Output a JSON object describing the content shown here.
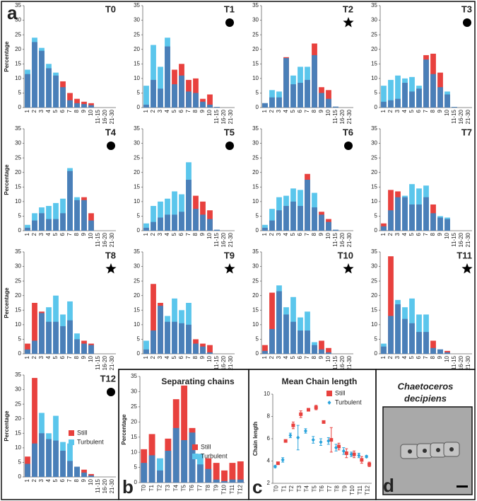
{
  "chart_data": [
    {
      "type": "bar",
      "title": "T0",
      "panel": "a",
      "ylabel": "Percentage",
      "categories": [
        "1",
        "2",
        "3",
        "4",
        "5",
        "6",
        "7",
        "8",
        "9",
        "10",
        "11-15",
        "16-20",
        "21-30"
      ],
      "series": [
        {
          "color": "#e8413e",
          "values": [
            11.5,
            22.5,
            19.5,
            13.5,
            11,
            9,
            5,
            3,
            2,
            1.5,
            0,
            0,
            0
          ]
        },
        {
          "color": "#5bc6ec",
          "values": [
            13,
            24,
            20.5,
            15,
            12,
            7,
            2.5,
            1.5,
            1.2,
            0.8,
            0,
            0,
            0
          ]
        }
      ],
      "overlap_color": "#4a7fb8",
      "ylim": [
        0,
        35
      ],
      "yticks": [
        0,
        5,
        10,
        15,
        20,
        25,
        30,
        35
      ]
    },
    {
      "type": "bar",
      "title": "T1",
      "marker": "circle",
      "categories": [
        "1",
        "2",
        "3",
        "4",
        "5",
        "6",
        "7",
        "8",
        "9",
        "10",
        "11-15",
        "16-20",
        "21-30"
      ],
      "series": [
        {
          "color": "#e8413e",
          "values": [
            1,
            9.5,
            6.5,
            21,
            13,
            15,
            9.5,
            10,
            3,
            4.5,
            0.2,
            0,
            0
          ]
        },
        {
          "color": "#5bc6ec",
          "values": [
            7.5,
            21.5,
            14,
            24,
            8,
            11,
            5.5,
            5,
            2,
            1,
            0.2,
            0,
            0
          ]
        }
      ],
      "overlap_color": "#4a7fb8",
      "ylim": [
        0,
        35
      ],
      "yticks": [
        0,
        5,
        10,
        15,
        20,
        25,
        30,
        35
      ]
    },
    {
      "type": "bar",
      "title": "T2",
      "marker": "star",
      "categories": [
        "1",
        "2",
        "3",
        "4",
        "5",
        "6",
        "7",
        "8",
        "9",
        "10",
        "11-15",
        "16-20",
        "21-30"
      ],
      "series": [
        {
          "color": "#e8413e",
          "values": [
            1.5,
            3.5,
            3.5,
            17.3,
            8,
            8.5,
            9.5,
            22,
            7,
            6,
            0.3,
            0,
            0
          ]
        },
        {
          "color": "#5bc6ec",
          "values": [
            1.5,
            6,
            5.5,
            17,
            11,
            14,
            14,
            18,
            5,
            3,
            0.3,
            0,
            0
          ]
        }
      ],
      "overlap_color": "#4a7fb8",
      "ylim": [
        0,
        35
      ],
      "yticks": [
        0,
        5,
        10,
        15,
        20,
        25,
        30,
        35
      ]
    },
    {
      "type": "bar",
      "title": "T3",
      "marker": "circle",
      "categories": [
        "1",
        "2",
        "3",
        "4",
        "5",
        "6",
        "7",
        "8",
        "9",
        "10",
        "11-15",
        "16-20",
        "21-30"
      ],
      "series": [
        {
          "color": "#e8413e",
          "values": [
            2,
            2.5,
            3,
            8.5,
            5.5,
            6.5,
            18,
            18.5,
            12,
            4.5,
            0.2,
            0,
            0
          ]
        },
        {
          "color": "#5bc6ec",
          "values": [
            7.5,
            9.5,
            11,
            10,
            10.5,
            7.5,
            16.5,
            11.5,
            7,
            5.5,
            0.2,
            0,
            0
          ]
        }
      ],
      "overlap_color": "#4a7fb8",
      "ylim": [
        0,
        35
      ],
      "yticks": [
        0,
        5,
        10,
        15,
        20,
        25,
        30,
        35
      ]
    },
    {
      "type": "bar",
      "title": "T4",
      "marker": "circle",
      "ylabel": "Percentage",
      "categories": [
        "1",
        "2",
        "3",
        "4",
        "5",
        "6",
        "7",
        "8",
        "9",
        "10",
        "11-15",
        "16-20",
        "21-30"
      ],
      "series": [
        {
          "color": "#e8413e",
          "values": [
            1,
            3.5,
            6,
            4,
            4,
            6,
            20.5,
            10.5,
            11.5,
            6,
            0,
            0,
            0
          ]
        },
        {
          "color": "#5bc6ec",
          "values": [
            2,
            6,
            8,
            8.5,
            9.5,
            11,
            21.5,
            11.5,
            10.5,
            3.5,
            0,
            0,
            0
          ]
        }
      ],
      "overlap_color": "#4a7fb8",
      "ylim": [
        0,
        35
      ],
      "yticks": [
        0,
        5,
        10,
        15,
        20,
        25,
        30,
        35
      ]
    },
    {
      "type": "bar",
      "title": "T5",
      "marker": "circle",
      "categories": [
        "1",
        "2",
        "3",
        "4",
        "5",
        "6",
        "7",
        "8",
        "9",
        "10",
        "11-15",
        "16-20",
        "21-30"
      ],
      "series": [
        {
          "color": "#e8413e",
          "values": [
            1,
            3,
            4.5,
            5.5,
            5.5,
            6.5,
            17.5,
            12,
            10,
            7,
            0.3,
            0,
            0
          ]
        },
        {
          "color": "#5bc6ec",
          "values": [
            2.5,
            8.5,
            10,
            11,
            13.5,
            12.5,
            23.5,
            7.5,
            5.5,
            4,
            0.3,
            0,
            0
          ]
        }
      ],
      "overlap_color": "#4a7fb8",
      "ylim": [
        0,
        35
      ],
      "yticks": [
        0,
        5,
        10,
        15,
        20,
        25,
        30,
        35
      ]
    },
    {
      "type": "bar",
      "title": "T6",
      "marker": "circle",
      "categories": [
        "1",
        "2",
        "3",
        "4",
        "5",
        "6",
        "7",
        "8",
        "9",
        "10",
        "11-15",
        "16-20",
        "21-30"
      ],
      "series": [
        {
          "color": "#e8413e",
          "values": [
            1,
            3.5,
            7,
            8.5,
            10,
            8.5,
            19.5,
            8,
            6.5,
            4,
            0.3,
            0,
            0
          ]
        },
        {
          "color": "#5bc6ec",
          "values": [
            2,
            7.5,
            11.5,
            12,
            14.5,
            14,
            17.5,
            13,
            5.5,
            3,
            0.3,
            0,
            0
          ]
        }
      ],
      "overlap_color": "#4a7fb8",
      "ylim": [
        0,
        35
      ],
      "yticks": [
        0,
        5,
        10,
        15,
        20,
        25,
        30,
        35
      ]
    },
    {
      "type": "bar",
      "title": "T7",
      "categories": [
        "1",
        "2",
        "3",
        "4",
        "5",
        "6",
        "7",
        "8",
        "9",
        "10",
        "11-15",
        "16-20",
        "21-30"
      ],
      "series": [
        {
          "color": "#e8413e",
          "values": [
            2.5,
            14,
            13.5,
            11.5,
            9,
            9,
            11.5,
            9,
            4.5,
            4,
            0,
            0,
            0
          ]
        },
        {
          "color": "#5bc6ec",
          "values": [
            1.5,
            7,
            11.5,
            12,
            16,
            14.5,
            15.5,
            6,
            5,
            4.5,
            0,
            0,
            0
          ]
        }
      ],
      "overlap_color": "#4a7fb8",
      "ylim": [
        0,
        35
      ],
      "yticks": [
        0,
        5,
        10,
        15,
        20,
        25,
        30,
        35
      ]
    },
    {
      "type": "bar",
      "title": "T8",
      "marker": "star",
      "ylabel": "Percentage",
      "categories": [
        "1",
        "2",
        "3",
        "4",
        "5",
        "6",
        "7",
        "8",
        "9",
        "10",
        "11-15",
        "16-20",
        "21-30"
      ],
      "series": [
        {
          "color": "#e8413e",
          "values": [
            3.5,
            17.5,
            14.5,
            11,
            11,
            9.5,
            11.5,
            5,
            4.5,
            3.5,
            0,
            0,
            0
          ]
        },
        {
          "color": "#5bc6ec",
          "values": [
            1.5,
            4.5,
            14,
            16,
            20,
            13.5,
            18,
            7,
            3.5,
            3,
            0,
            0,
            0
          ]
        }
      ],
      "overlap_color": "#4a7fb8",
      "ylim": [
        0,
        35
      ],
      "yticks": [
        0,
        5,
        10,
        15,
        20,
        25,
        30,
        35
      ]
    },
    {
      "type": "bar",
      "title": "T9",
      "marker": "star",
      "categories": [
        "1",
        "2",
        "3",
        "4",
        "5",
        "6",
        "7",
        "8",
        "9",
        "10",
        "11-15",
        "16-20",
        "21-30"
      ],
      "series": [
        {
          "color": "#e8413e",
          "values": [
            1.5,
            24,
            17.5,
            11,
            11,
            10.5,
            10,
            5,
            3.5,
            3,
            0,
            0,
            0
          ]
        },
        {
          "color": "#5bc6ec",
          "values": [
            4.5,
            8,
            16.5,
            13,
            19,
            15,
            17.5,
            3.5,
            2.5,
            0.5,
            0,
            0,
            0
          ]
        }
      ],
      "overlap_color": "#4a7fb8",
      "ylim": [
        0,
        35
      ],
      "yticks": [
        0,
        5,
        10,
        15,
        20,
        25,
        30,
        35
      ]
    },
    {
      "type": "bar",
      "title": "T10",
      "marker": "star",
      "categories": [
        "1",
        "2",
        "3",
        "4",
        "5",
        "6",
        "7",
        "8",
        "9",
        "10",
        "11-15",
        "16-20",
        "21-30"
      ],
      "series": [
        {
          "color": "#e8413e",
          "values": [
            3,
            21,
            21.5,
            13.5,
            11,
            8,
            8,
            3,
            4.5,
            2,
            0,
            0,
            0
          ]
        },
        {
          "color": "#5bc6ec",
          "values": [
            1,
            8.5,
            23.5,
            16,
            19.5,
            12.5,
            14.5,
            4,
            1.5,
            0.5,
            0,
            0,
            0
          ]
        }
      ],
      "overlap_color": "#4a7fb8",
      "ylim": [
        0,
        35
      ],
      "yticks": [
        0,
        5,
        10,
        15,
        20,
        25,
        30,
        35
      ]
    },
    {
      "type": "bar",
      "title": "T11",
      "marker": "star",
      "categories": [
        "1",
        "2",
        "3",
        "4",
        "5",
        "6",
        "7",
        "8",
        "9",
        "10",
        "11-15",
        "16-20",
        "21-30"
      ],
      "series": [
        {
          "color": "#e8413e",
          "values": [
            2.5,
            33.5,
            17,
            12,
            10.5,
            7.5,
            7.5,
            4.5,
            1.5,
            1,
            0,
            0,
            0
          ]
        },
        {
          "color": "#5bc6ec",
          "values": [
            3.5,
            13,
            18.5,
            16,
            19,
            13.5,
            13.5,
            2,
            1.5,
            0.5,
            0,
            0,
            0
          ]
        }
      ],
      "overlap_color": "#4a7fb8",
      "ylim": [
        0,
        35
      ],
      "yticks": [
        0,
        5,
        10,
        15,
        20,
        25,
        30,
        35
      ]
    },
    {
      "type": "bar",
      "title": "T12",
      "marker": "circle",
      "ylabel": "Percentage",
      "categories": [
        "1",
        "2",
        "3",
        "4",
        "5",
        "6",
        "7",
        "8",
        "9",
        "10",
        "11-15",
        "16-20",
        "21-30"
      ],
      "series": [
        {
          "name": "Still",
          "color": "#e8413e",
          "values": [
            7,
            34,
            15,
            13,
            12.5,
            9,
            5.5,
            3.5,
            2.5,
            1,
            0,
            0,
            0
          ]
        },
        {
          "name": "Turbulent",
          "color": "#5bc6ec",
          "values": [
            4.5,
            11.5,
            22,
            15,
            21,
            12,
            11.5,
            3.5,
            1.5,
            0.5,
            0,
            0,
            0
          ]
        }
      ],
      "overlap_color": "#4a7fb8",
      "ylim": [
        0,
        35
      ],
      "yticks": [
        0,
        5,
        10,
        15,
        20,
        25,
        30,
        35
      ]
    },
    {
      "type": "bar",
      "title": "Separating chains",
      "panel": "b",
      "ylabel": "Percentage",
      "categories": [
        "T0",
        "T1",
        "T2",
        "T3",
        "T4",
        "T5",
        "T6",
        "T7",
        "T8",
        "T9",
        "T10",
        "T11",
        "T12"
      ],
      "series": [
        {
          "name": "Still",
          "color": "#e8413e",
          "values": [
            11,
            16,
            4,
            14.5,
            27.5,
            32,
            18,
            6,
            8,
            6.5,
            4,
            6.5,
            7
          ]
        },
        {
          "name": "Turbulent",
          "color": "#5bc6ec",
          "values": [
            6.5,
            9,
            8,
            10.5,
            18,
            14,
            16.5,
            9.5,
            4.5,
            1,
            0.5,
            1,
            1
          ]
        }
      ],
      "overlap_color": "#4a7fb8",
      "ylim": [
        0,
        35
      ],
      "yticks": [
        0,
        5,
        10,
        15,
        20,
        25,
        30,
        35
      ]
    },
    {
      "type": "errorbar",
      "title": "Mean Chain length",
      "panel": "c",
      "ylabel": "Chain length",
      "categories": [
        "T0",
        "T1",
        "T2",
        "T3",
        "T4",
        "T5",
        "T6",
        "T7",
        "T8",
        "T9",
        "T10",
        "T11",
        "T12"
      ],
      "series": [
        {
          "name": "Still",
          "color": "#e8413e",
          "marker": "square",
          "values": [
            3.8,
            5.8,
            7.2,
            8.2,
            8.6,
            8.8,
            7.5,
            5.9,
            5.3,
            4.7,
            4.6,
            4.1,
            3.7
          ],
          "errors": [
            0.1,
            0.1,
            0.3,
            0.3,
            0.1,
            0.2,
            0.1,
            1.1,
            0.3,
            0.4,
            0.3,
            0.3,
            0.2
          ]
        },
        {
          "name": "Turbulent",
          "color": "#29a3dc",
          "marker": "diamond",
          "values": [
            3.5,
            4.1,
            6.3,
            6.1,
            6.7,
            5.9,
            5.7,
            5.8,
            5.2,
            4.9,
            4.6,
            4.5,
            4.4
          ],
          "errors": [
            0.1,
            0.2,
            0.2,
            1.1,
            0.2,
            0.3,
            0.3,
            0.3,
            0.3,
            0.3,
            0.2,
            0.2,
            0.1
          ]
        }
      ],
      "ylim": [
        2,
        10
      ],
      "yticks": [
        2,
        4,
        6,
        8,
        10
      ]
    }
  ],
  "image_panel": {
    "title_line1": "Chaetoceros",
    "title_line2": "decipiens",
    "panel": "d"
  }
}
